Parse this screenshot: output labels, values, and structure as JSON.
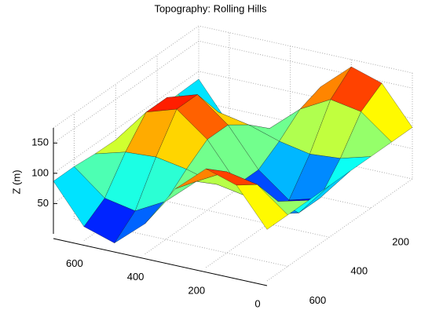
{
  "chart_data": {
    "type": "surface",
    "title": "Topography:  Rolling Hills",
    "zlabel": "Z (m)",
    "x": [
      0,
      100,
      200,
      300,
      400,
      500,
      600,
      700
    ],
    "y": [
      0,
      100,
      200,
      300,
      400,
      500,
      600,
      700
    ],
    "z": [
      [
        85,
        85,
        85,
        85,
        85,
        85,
        85,
        85
      ],
      [
        147,
        124,
        71,
        29,
        29,
        72,
        124,
        147
      ],
      [
        163,
        133,
        67,
        15,
        15,
        69,
        134,
        163
      ],
      [
        119,
        106,
        77,
        54,
        54,
        78,
        107,
        119
      ],
      [
        50,
        63,
        93,
        117,
        117,
        92,
        63,
        50
      ],
      [
        7,
        36,
        103,
        156,
        156,
        101,
        36,
        7
      ],
      [
        23,
        47,
        99,
        140,
        140,
        98,
        46,
        23
      ],
      [
        87,
        86,
        84,
        83,
        83,
        84,
        87,
        87
      ]
    ],
    "xlim": [
      0,
      700
    ],
    "xticks": [
      0,
      200,
      400,
      600
    ],
    "ylim": [
      0,
      700
    ],
    "yticks": [
      0,
      200,
      400,
      600
    ],
    "zlim": [
      0,
      175
    ],
    "zticks": [
      50,
      100,
      150
    ],
    "colormap": "jet",
    "grid": true
  }
}
